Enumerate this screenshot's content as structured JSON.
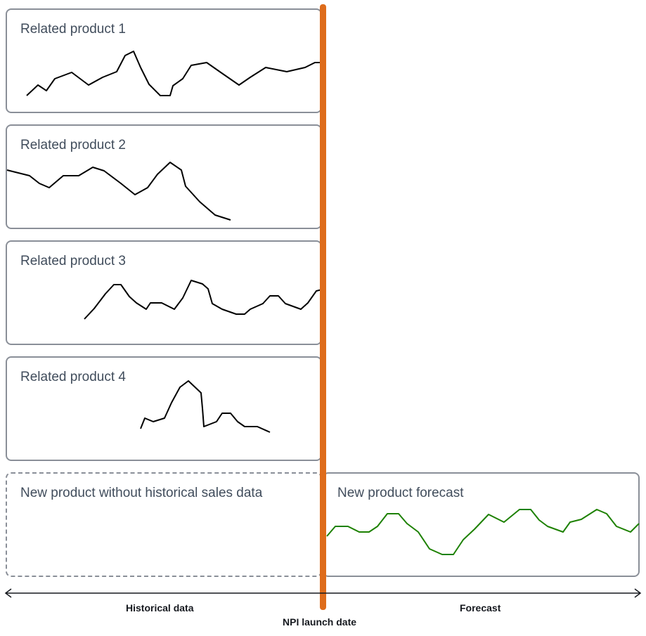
{
  "panels": [
    {
      "id": "related-product-1",
      "title": "Related product 1"
    },
    {
      "id": "related-product-2",
      "title": "Related product 2"
    },
    {
      "id": "related-product-3",
      "title": "Related product 3"
    },
    {
      "id": "related-product-4",
      "title": "Related product 4"
    },
    {
      "id": "new-product-history",
      "title": "New product without historical sales data"
    },
    {
      "id": "new-product-forecast",
      "title": "New product forecast"
    }
  ],
  "axis": {
    "left_label": "Historical data",
    "center_label": "NPI launch date",
    "right_label": "Forecast"
  },
  "colors": {
    "history_line": "#000000",
    "forecast_line": "#1d8102",
    "divider": "#de6c1b",
    "panel_border": "#8a8f98",
    "title_text": "#414d5c"
  }
}
